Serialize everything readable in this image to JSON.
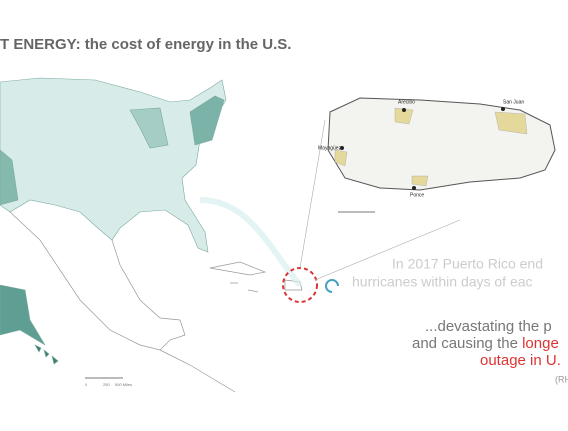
{
  "title": "T ENERGY: the cost of energy in the U.S.",
  "main_map": {
    "scale_labels": [
      "0",
      "250",
      "500 Miles"
    ]
  },
  "inset": {
    "cities": [
      "Arecibo",
      "San Juan",
      "Mayagüez",
      "Ponce"
    ]
  },
  "caption": {
    "line1": "In 2017 Puerto Rico end",
    "line2": "hurricanes within days of eac",
    "line3": "...devastating the p",
    "line4a": "and causing the ",
    "line4b": "longe",
    "line5": "outage in U.",
    "source": "(RH"
  }
}
